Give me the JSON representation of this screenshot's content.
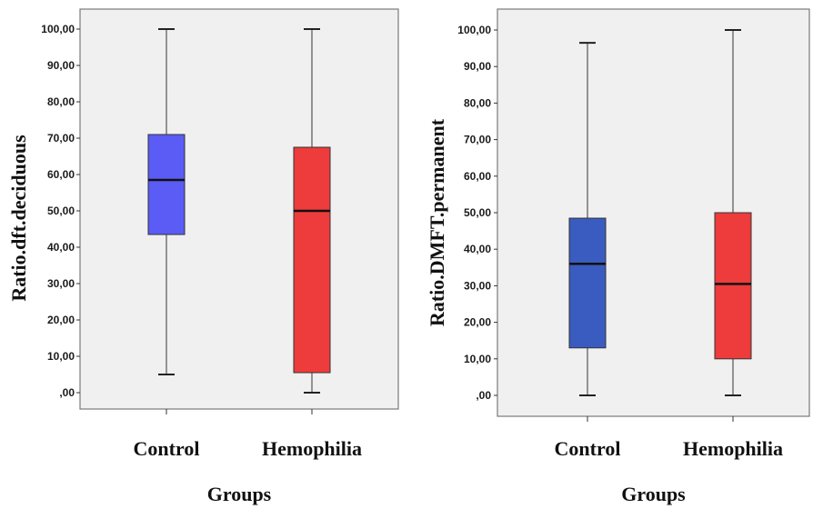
{
  "chart_data": [
    {
      "type": "boxplot",
      "xlabel": "Groups",
      "ylabel": "Ratio.dft.deciduous",
      "ylim": [
        0,
        100
      ],
      "yticks": [
        "100,00",
        "90,00",
        "80,00",
        "70,00",
        "60,00",
        "50,00",
        "40,00",
        "30,00",
        "20,00",
        "10,00",
        ",00"
      ],
      "ytick_values": [
        100,
        90,
        80,
        70,
        60,
        50,
        40,
        30,
        20,
        10,
        0
      ],
      "grid": false,
      "categories": [
        "Control",
        "Hemophilia"
      ],
      "boxes": [
        {
          "category": "Control",
          "min": 5,
          "q1": 43.5,
          "median": 58.5,
          "q3": 71,
          "max": 100,
          "color": "#5a5cf5"
        },
        {
          "category": "Hemophilia",
          "min": 0,
          "q1": 5.5,
          "median": 50,
          "q3": 67.5,
          "max": 100,
          "color": "#ee3b3b"
        }
      ]
    },
    {
      "type": "boxplot",
      "xlabel": "Groups",
      "ylabel": "Ratio.DMFT.permanent",
      "ylim": [
        0,
        100
      ],
      "yticks": [
        "100,00",
        "90,00",
        "80,00",
        "70,00",
        "60,00",
        "50,00",
        "40,00",
        "30,00",
        "20,00",
        "10,00",
        ",00"
      ],
      "ytick_values": [
        100,
        90,
        80,
        70,
        60,
        50,
        40,
        30,
        20,
        10,
        0
      ],
      "grid": false,
      "categories": [
        "Control",
        "Hemophilia"
      ],
      "boxes": [
        {
          "category": "Control",
          "min": 0,
          "q1": 13,
          "median": 36,
          "q3": 48.5,
          "max": 96.5,
          "color": "#3a5cc0"
        },
        {
          "category": "Hemophilia",
          "min": 0,
          "q1": 10,
          "median": 30.5,
          "q3": 50,
          "max": 100,
          "color": "#ee3b3b"
        }
      ]
    }
  ],
  "colors": {
    "plot_background": "#f0f0f0",
    "frame": "#7a7a7a",
    "whisker": "#555555",
    "median": "#111111"
  }
}
